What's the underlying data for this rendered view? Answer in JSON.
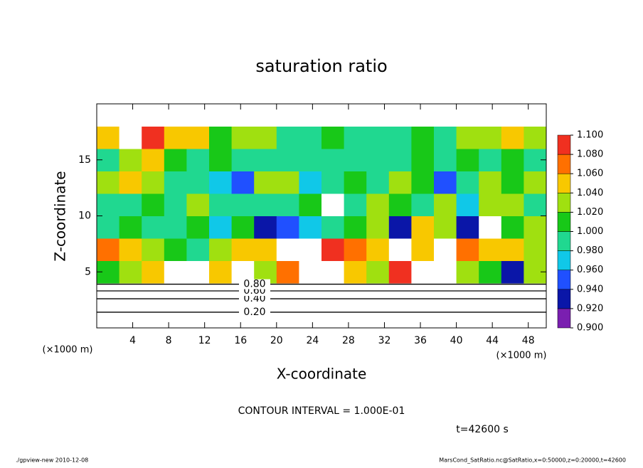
{
  "chart_data": {
    "type": "heatmap",
    "title": "saturation ratio",
    "x_label": "X-coordinate",
    "y_label": "Z-coordinate",
    "unit_label": "(×1000 m)",
    "note": "CONTOUR INTERVAL = 1.000E-01",
    "time_label": "t=42600 s",
    "footer_left": "./gpview-new   2010-12-08",
    "footer_right": "MarsCond_SatRatio.nc@SatRatio,x=0:50000,z=0:20000,t=42600",
    "xlim": [
      0,
      50
    ],
    "ylim": [
      0,
      20
    ],
    "xticks": [
      4,
      8,
      12,
      16,
      20,
      24,
      28,
      32,
      36,
      40,
      44,
      48
    ],
    "yticks": [
      5,
      10,
      15
    ],
    "xbins": [
      0,
      2.5,
      5,
      7.5,
      10,
      12.5,
      15,
      17.5,
      20,
      22.5,
      25,
      27.5,
      30,
      32.5,
      35,
      37.5,
      40,
      42.5,
      45,
      47.5,
      50
    ],
    "zbins": [
      0,
      2,
      4,
      6,
      8,
      10,
      12,
      14,
      16,
      18,
      20
    ],
    "values": [
      [
        0.2,
        0.2,
        0.2,
        0.2,
        0.2,
        0.2,
        0.2,
        0.2,
        0.2,
        0.2,
        0.2,
        0.2,
        0.2,
        0.2,
        0.2,
        0.2,
        0.2,
        0.2,
        0.2,
        0.2
      ],
      [
        0.6,
        0.6,
        0.6,
        0.6,
        0.6,
        0.6,
        0.6,
        0.6,
        0.6,
        0.6,
        0.6,
        0.6,
        0.6,
        0.6,
        0.6,
        0.6,
        0.6,
        0.6,
        0.6,
        0.6
      ],
      [
        1.02,
        1.04,
        1.06,
        1.12,
        1.13,
        1.05,
        1.12,
        1.04,
        1.07,
        1.12,
        1.13,
        1.06,
        1.04,
        1.08,
        1.12,
        1.12,
        1.04,
        1.02,
        0.94,
        1.03
      ],
      [
        1.07,
        1.06,
        1.04,
        1.02,
        1.0,
        1.03,
        1.05,
        1.06,
        1.12,
        1.12,
        1.08,
        1.07,
        1.05,
        1.12,
        1.06,
        1.12,
        1.07,
        1.05,
        1.06,
        1.04
      ],
      [
        1.0,
        1.01,
        0.99,
        1.0,
        1.01,
        0.98,
        1.02,
        0.94,
        0.95,
        0.97,
        1.0,
        1.01,
        1.03,
        0.94,
        1.05,
        1.04,
        0.93,
        1.12,
        1.02,
        1.03
      ],
      [
        1.0,
        1.0,
        1.01,
        1.0,
        1.03,
        0.99,
        1.0,
        1.0,
        1.0,
        1.01,
        1.12,
        1.0,
        1.04,
        1.02,
        1.0,
        1.03,
        0.97,
        1.04,
        1.03,
        1.0
      ],
      [
        1.04,
        1.05,
        1.03,
        0.99,
        1.0,
        0.97,
        0.96,
        1.04,
        1.03,
        0.98,
        1.0,
        1.02,
        1.0,
        1.04,
        1.02,
        0.95,
        1.0,
        1.04,
        1.01,
        1.03
      ],
      [
        1.0,
        1.03,
        1.05,
        1.02,
        1.0,
        1.01,
        1.0,
        1.0,
        1.0,
        0.99,
        1.0,
        1.0,
        1.0,
        0.99,
        1.01,
        1.0,
        1.02,
        1.0,
        1.01,
        1.0
      ],
      [
        1.06,
        1.12,
        1.08,
        1.06,
        1.05,
        1.02,
        1.03,
        1.04,
        1.0,
        1.0,
        1.01,
        1.0,
        1.0,
        1.0,
        1.02,
        1.0,
        1.04,
        1.03,
        1.05,
        1.04
      ],
      [
        0.8,
        0.8,
        0.8,
        0.8,
        0.8,
        0.8,
        0.8,
        0.8,
        0.8,
        0.8,
        0.8,
        0.8,
        0.8,
        0.8,
        0.8,
        0.8,
        0.8,
        0.8,
        0.8,
        0.8
      ]
    ],
    "colors": [
      "#7a1fb0",
      "#0a16a8",
      "#2050ff",
      "#10c8e8",
      "#20d890",
      "#18c818",
      "#a0e010",
      "#f8c800",
      "#ff7000",
      "#f03020"
    ],
    "colorbar_ticks": [
      {
        "value": 0.9,
        "label": "0.900"
      },
      {
        "value": 0.92,
        "label": "0.920"
      },
      {
        "value": 0.94,
        "label": "0.940"
      },
      {
        "value": 0.96,
        "label": "0.960"
      },
      {
        "value": 0.98,
        "label": "0.980"
      },
      {
        "value": 1.0,
        "label": "1.000"
      },
      {
        "value": 1.02,
        "label": "1.020"
      },
      {
        "value": 1.04,
        "label": "1.040"
      },
      {
        "value": 1.06,
        "label": "1.060"
      },
      {
        "value": 1.08,
        "label": "1.080"
      },
      {
        "value": 1.1,
        "label": "1.100"
      }
    ],
    "contours": [
      {
        "label": "0.20",
        "z": 1.4
      },
      {
        "label": "0.40",
        "z": 2.6
      },
      {
        "label": "0.60",
        "z": 3.3
      },
      {
        "label": "0.80",
        "z": 3.9
      }
    ]
  }
}
